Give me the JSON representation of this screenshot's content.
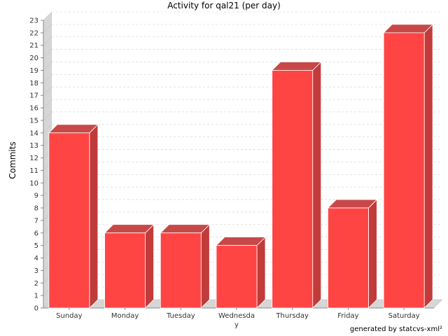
{
  "chart_data": {
    "type": "bar",
    "title": "Activity for qal21 (per day)",
    "ylabel": "Commits",
    "xlabel": "",
    "categories": [
      "Sunday",
      "Monday",
      "Tuesday",
      "Wednesday",
      "Thursday",
      "Friday",
      "Saturday"
    ],
    "category_labels": [
      "Sunday",
      "Monday",
      "Tuesday",
      "Wednesda\ny",
      "Thursday",
      "Friday",
      "Saturday"
    ],
    "values": [
      14,
      6,
      6,
      5,
      19,
      8,
      22
    ],
    "ylim": [
      0,
      23
    ],
    "ytick_step": 1,
    "grid": true,
    "bar_color": "#ff4444",
    "bar_side_color": "#c23b3b",
    "bar_top_color": "#c84848",
    "style_3d": true
  },
  "footer": {
    "credit": "generated by statcvs-xml²"
  }
}
